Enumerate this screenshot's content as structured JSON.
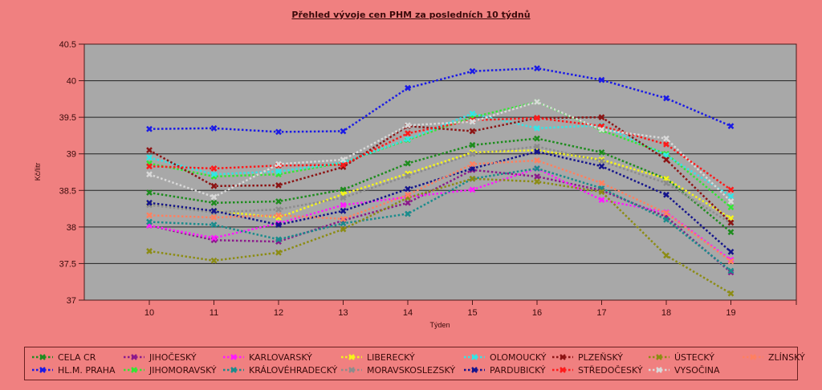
{
  "chart_data": {
    "type": "line",
    "title": "Přehled vývoje cen PHM za posledních 10 týdnů",
    "xlabel": "Týden",
    "ylabel": "Kč/litr",
    "x": [
      10,
      11,
      12,
      13,
      14,
      15,
      16,
      17,
      18,
      19
    ],
    "x_tick_labels": [
      "10",
      "11",
      "12",
      "13",
      "14",
      "15",
      "16",
      "17",
      "18",
      "19"
    ],
    "ylim": [
      37,
      40.5
    ],
    "y_ticks": [
      37,
      37.5,
      38,
      38.5,
      39,
      39.5,
      40,
      40.5
    ],
    "y_tick_labels": [
      "37",
      "37.5",
      "38",
      "38.5",
      "39",
      "39.5",
      "40",
      "40.5"
    ],
    "grid": "horizontal",
    "legend_position": "bottom",
    "plot_background": "#a8a8a8",
    "page_background": "#f08080",
    "series": [
      {
        "name": "CELA CR",
        "color": "#1e8c1e",
        "values": [
          38.47,
          38.33,
          38.35,
          38.51,
          38.87,
          39.12,
          39.21,
          39.02,
          38.66,
          37.93
        ]
      },
      {
        "name": "HL.M. PRAHA",
        "color": "#1a1ae6",
        "values": [
          39.34,
          39.35,
          39.3,
          39.31,
          39.9,
          40.13,
          40.17,
          40.01,
          39.76,
          39.38
        ]
      },
      {
        "name": "JIHOČESKÝ",
        "color": "#8b1a8b",
        "values": [
          38.02,
          37.82,
          37.8,
          38.09,
          38.33,
          38.78,
          38.69,
          38.5,
          38.14,
          37.38
        ]
      },
      {
        "name": "JIHOMORAVSKÝ",
        "color": "#33e633",
        "values": [
          38.87,
          38.69,
          38.72,
          38.88,
          39.19,
          39.5,
          39.71,
          39.32,
          39.0,
          38.27
        ]
      },
      {
        "name": "KARLOVARSKÝ",
        "color": "#ff1aff",
        "values": [
          38.02,
          37.85,
          38.05,
          38.3,
          38.41,
          38.51,
          38.8,
          38.37,
          38.2,
          37.55
        ]
      },
      {
        "name": "KRÁLOVÉHRADECKÝ",
        "color": "#1a8c8c",
        "values": [
          38.07,
          38.03,
          37.83,
          38.05,
          38.18,
          38.66,
          38.8,
          38.53,
          38.1,
          37.4
        ]
      },
      {
        "name": "LIBERECKÝ",
        "color": "#f5f51a",
        "values": [
          38.32,
          38.22,
          38.13,
          38.45,
          38.73,
          39.02,
          39.05,
          38.92,
          38.66,
          38.12
        ]
      },
      {
        "name": "MORAVSKOSLEZSKÝ",
        "color": "#8c8c8c",
        "values": [
          38.3,
          38.2,
          38.24,
          38.4,
          38.7,
          39.0,
          39.1,
          38.9,
          38.6,
          38.05
        ]
      },
      {
        "name": "OLOMOUCKÝ",
        "color": "#33e6e6",
        "values": [
          38.95,
          38.72,
          38.76,
          38.88,
          39.2,
          39.55,
          39.35,
          39.39,
          38.98,
          38.42
        ]
      },
      {
        "name": "PARDUBICKÝ",
        "color": "#14148c",
        "values": [
          38.33,
          38.22,
          38.03,
          38.22,
          38.52,
          38.8,
          39.03,
          38.83,
          38.44,
          37.66
        ]
      },
      {
        "name": "PLZEŇSKÝ",
        "color": "#8c1414",
        "values": [
          39.05,
          38.56,
          38.57,
          38.82,
          39.38,
          39.31,
          39.49,
          39.5,
          38.92,
          38.06
        ]
      },
      {
        "name": "STŘEDOČESKÝ",
        "color": "#ff1a1a",
        "values": [
          38.83,
          38.8,
          38.84,
          38.85,
          39.28,
          39.46,
          39.49,
          39.38,
          39.13,
          38.51
        ]
      },
      {
        "name": "ÚSTECKÝ",
        "color": "#8c8c14",
        "values": [
          37.67,
          37.54,
          37.65,
          37.97,
          38.4,
          38.66,
          38.62,
          38.48,
          37.61,
          37.09
        ]
      },
      {
        "name": "VYSOČINA",
        "color": "#d9d9d9",
        "values": [
          38.72,
          38.41,
          38.86,
          38.92,
          39.39,
          39.44,
          39.71,
          39.33,
          39.21,
          38.35
        ]
      },
      {
        "name": "ZLÍNSKÝ",
        "color": "#ff8060",
        "values": [
          38.16,
          38.13,
          38.16,
          38.11,
          38.44,
          38.86,
          38.91,
          38.6,
          38.19,
          37.53
        ]
      }
    ]
  }
}
